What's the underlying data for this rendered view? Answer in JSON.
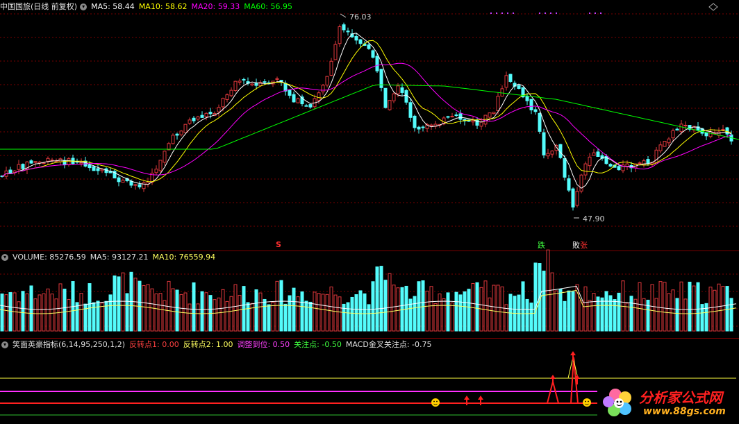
{
  "price_panel": {
    "title": "中国国旅(日线 前复权)",
    "ma5": "MA5: 58.44",
    "ma10": "MA10: 58.62",
    "ma20": "MA20: 59.33",
    "ma60": "MA60: 56.95",
    "high_label": "76.03",
    "low_label": "47.90",
    "signal_s": "S",
    "signal_die": "跌",
    "signal_bai": "败",
    "signal_zhang": "张"
  },
  "volume_panel": {
    "volume": "VOLUME: 85276.59",
    "ma5": "MA5: 93127.21",
    "ma10": "MA10: 76559.94"
  },
  "indicator_panel": {
    "title": "笑面英豪指标(6,14,95,250,1,2)",
    "p1": "反转点1: 0.00",
    "p2": "反转点2: 1.00",
    "p3": "调整到位: 0.50",
    "p4": "关注点: -0.50",
    "p5": "MACD金叉关注点: -0.75"
  },
  "watermark": {
    "name": "分析家公式网",
    "url": "www.88gs.com"
  },
  "colors": {
    "up": "#e0383c",
    "down": "#54fcfc",
    "ma5": "#ffffff",
    "ma10": "#ffff00",
    "ma20": "#ff00ff",
    "ma60": "#00ff00",
    "grid": "#7a0000"
  },
  "chart_data": {
    "type": "candlestick",
    "description": "Daily K-line with MA5/MA10/MA20/MA60, volume bars and custom indicator",
    "price_high": 76.03,
    "price_low": 47.9,
    "ma_last": {
      "MA5": 58.44,
      "MA10": 58.62,
      "MA20": 59.33,
      "MA60": 56.95
    },
    "volume_last": 85276.59,
    "vol_ma5": 93127.21,
    "vol_ma10": 76559.94,
    "indicator_params": [
      6,
      14,
      95,
      250,
      1,
      2
    ],
    "indicator_values": {
      "反转点1": 0.0,
      "反转点2": 1.0,
      "调整到位": 0.5,
      "关注点": -0.5,
      "MACD金叉关注点": -0.75
    }
  }
}
